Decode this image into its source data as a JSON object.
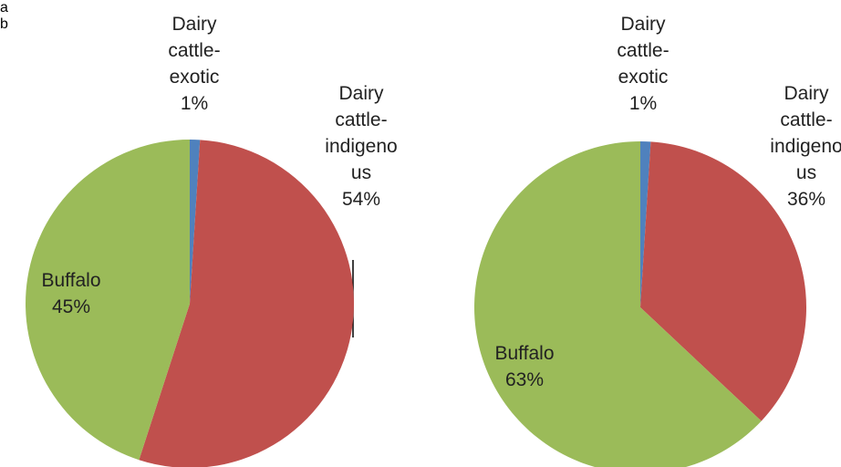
{
  "chart_data": [
    {
      "type": "pie",
      "title": "a",
      "categories": [
        "Dairy cattle-exotic",
        "Dairy cattle-indigenous",
        "Buffalo"
      ],
      "values": [
        1,
        54,
        45
      ],
      "value_labels": [
        "1%",
        "54%",
        "45%"
      ],
      "colors": [
        "#4f81bd",
        "#c0504d",
        "#9bbb59"
      ]
    },
    {
      "type": "pie",
      "title": "b",
      "categories": [
        "Dairy cattle-exotic",
        "Dairy cattle-indigenous",
        "Buffalo"
      ],
      "values": [
        1,
        36,
        63
      ],
      "value_labels": [
        "1%",
        "36%",
        "63%"
      ],
      "colors": [
        "#4f81bd",
        "#c0504d",
        "#9bbb59"
      ]
    }
  ]
}
